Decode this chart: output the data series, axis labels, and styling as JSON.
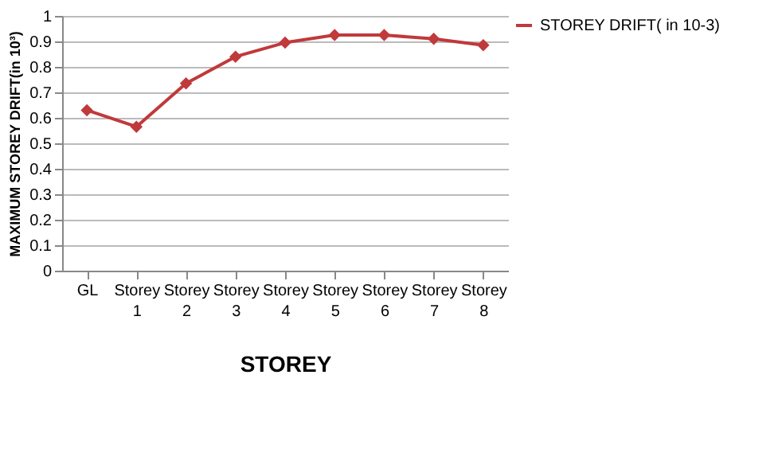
{
  "chart_data": {
    "type": "line",
    "xlabel": "STOREY",
    "ylabel": "MAXIMUM STOREY DRIFT(in 10³)",
    "categories": [
      "GL",
      "Storey 1",
      "Storey 2",
      "Storey 3",
      "Storey 4",
      "Storey 5",
      "Storey 6",
      "Storey 7",
      "Storey 8"
    ],
    "series": [
      {
        "name": "STOREY DRIFT( in 10-3)",
        "color": "#c0393b",
        "values": [
          0.63,
          0.565,
          0.735,
          0.84,
          0.895,
          0.925,
          0.925,
          0.91,
          0.885
        ]
      }
    ],
    "ylim": [
      0,
      1
    ],
    "yticks": [
      0,
      0.1,
      0.2,
      0.3,
      0.4,
      0.5,
      0.6,
      0.7,
      0.8,
      0.9,
      1
    ],
    "grid": "y",
    "legend": "right",
    "marker": "diamond",
    "line_style": "solid"
  }
}
